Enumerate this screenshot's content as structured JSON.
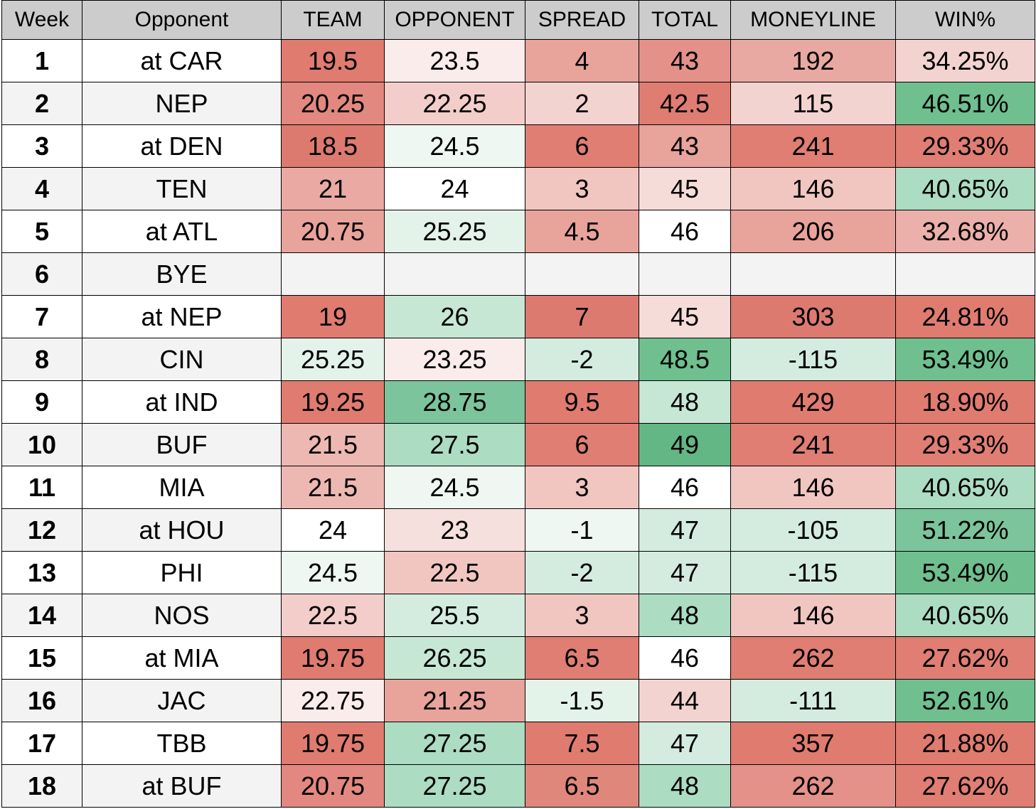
{
  "table": {
    "columns": [
      "Week",
      "Opponent",
      "TEAM",
      "OPPONENT",
      "SPREAD",
      "TOTAL",
      "MONEYLINE",
      "WIN%"
    ],
    "rows": [
      {
        "week": 1,
        "opponent": "at CAR",
        "cells": [
          19.5,
          23.5,
          4,
          43,
          192,
          "34.25%"
        ],
        "colors": [
          "#e07b70",
          "#faeceb",
          "#e8a39b",
          "#e39189",
          "#e8a9a2",
          "#f3d3d0"
        ]
      },
      {
        "week": 2,
        "opponent": "NEP",
        "cells": [
          20.25,
          22.25,
          2,
          42.5,
          115,
          "46.51%"
        ],
        "colors": [
          "#e28880",
          "#f3cdc9",
          "#f3d3d0",
          "#df7d72",
          "#f3d3d0",
          "#6fbf8f"
        ]
      },
      {
        "week": 3,
        "opponent": "at DEN",
        "cells": [
          18.5,
          24.5,
          6,
          43,
          241,
          "29.33%"
        ],
        "colors": [
          "#dd7a6f",
          "#eef7f1",
          "#e07e73",
          "#e8a39b",
          "#e07e73",
          "#e07e73"
        ]
      },
      {
        "week": 4,
        "opponent": "TEN",
        "cells": [
          21,
          24,
          3,
          45,
          146,
          "40.65%"
        ],
        "colors": [
          "#eaaaa3",
          "#ffffff",
          "#f1c6c1",
          "#f6dcd9",
          "#f1c6c1",
          "#acdcc2"
        ]
      },
      {
        "week": 5,
        "opponent": "at ATL",
        "cells": [
          20.75,
          25.25,
          4.5,
          46,
          206,
          "32.68%"
        ],
        "colors": [
          "#e8a39b",
          "#e3f3ea",
          "#e8a39b",
          "#ffffff",
          "#e8a39b",
          "#eab0a9"
        ]
      },
      {
        "week": 6,
        "opponent": "BYE",
        "cells": [
          null,
          null,
          null,
          null,
          null,
          null
        ],
        "colors": [
          "#f3f3f3",
          "#f3f3f3",
          "#f3f3f3",
          "#f3f3f3",
          "#f3f3f3",
          "#f3f3f3"
        ]
      },
      {
        "week": 7,
        "opponent": "at NEP",
        "cells": [
          19,
          26,
          7,
          45,
          303,
          "24.81%"
        ],
        "colors": [
          "#e07b70",
          "#c6e7d4",
          "#dd7a6f",
          "#f6dcd9",
          "#dd7a6f",
          "#e07b70"
        ]
      },
      {
        "week": 8,
        "opponent": "CIN",
        "cells": [
          25.25,
          23.25,
          -2,
          48.5,
          -115,
          "53.49%"
        ],
        "colors": [
          "#e3f3ea",
          "#faeceb",
          "#d3ecdf",
          "#6fbf8f",
          "#d3ecdf",
          "#6fbf8f"
        ]
      },
      {
        "week": 9,
        "opponent": "at IND",
        "cells": [
          19.25,
          28.75,
          9.5,
          48,
          429,
          "18.90%"
        ],
        "colors": [
          "#e07b70",
          "#7cc49c",
          "#e07b70",
          "#c6e7d4",
          "#e07b70",
          "#e07b70"
        ]
      },
      {
        "week": 10,
        "opponent": "BUF",
        "cells": [
          21.5,
          27.5,
          6,
          49,
          241,
          "29.33%"
        ],
        "colors": [
          "#eeb8b2",
          "#acdcc2",
          "#e07e73",
          "#62b785",
          "#e07e73",
          "#e07e73"
        ]
      },
      {
        "week": 11,
        "opponent": "MIA",
        "cells": [
          21.5,
          24.5,
          3,
          46,
          146,
          "40.65%"
        ],
        "colors": [
          "#eeb8b2",
          "#eef7f1",
          "#f1c6c1",
          "#ffffff",
          "#f1c6c1",
          "#acdcc2"
        ]
      },
      {
        "week": 12,
        "opponent": "at HOU",
        "cells": [
          24,
          23,
          -1,
          47,
          -105,
          "51.22%"
        ],
        "colors": [
          "#ffffff",
          "#f6e0de",
          "#eef7f1",
          "#d3ecdf",
          "#d3ecdf",
          "#7cc49c"
        ]
      },
      {
        "week": 13,
        "opponent": "PHI",
        "cells": [
          24.5,
          22.5,
          -2,
          47,
          -115,
          "53.49%"
        ],
        "colors": [
          "#eef7f1",
          "#f1c6c1",
          "#d3ecdf",
          "#d3ecdf",
          "#d3ecdf",
          "#6fbf8f"
        ]
      },
      {
        "week": 14,
        "opponent": "NOS",
        "cells": [
          22.5,
          25.5,
          3,
          48,
          146,
          "40.65%"
        ],
        "colors": [
          "#f3cdc9",
          "#d3ecdf",
          "#f1c6c1",
          "#acdcc2",
          "#f1c6c1",
          "#acdcc2"
        ]
      },
      {
        "week": 15,
        "opponent": "at MIA",
        "cells": [
          19.75,
          26.25,
          6.5,
          46,
          262,
          "27.62%"
        ],
        "colors": [
          "#e07b70",
          "#c6e7d4",
          "#e07e73",
          "#ffffff",
          "#e07e73",
          "#e07e73"
        ]
      },
      {
        "week": 16,
        "opponent": "JAC",
        "cells": [
          22.75,
          21.25,
          -1.5,
          44,
          -111,
          "52.61%"
        ],
        "colors": [
          "#faeceb",
          "#e8a39b",
          "#e3f3ea",
          "#f3d3d0",
          "#d3ecdf",
          "#6fbf8f"
        ]
      },
      {
        "week": 17,
        "opponent": "TBB",
        "cells": [
          19.75,
          27.25,
          7.5,
          47,
          357,
          "21.88%"
        ],
        "colors": [
          "#e07b70",
          "#acdcc2",
          "#e07b70",
          "#d3ecdf",
          "#e07b70",
          "#e07b70"
        ]
      },
      {
        "week": 18,
        "opponent": "at BUF",
        "cells": [
          20.75,
          27.25,
          6.5,
          48,
          262,
          "27.62%"
        ],
        "colors": [
          "#e28880",
          "#acdcc2",
          "#e0877c",
          "#acdcc2",
          "#e39189",
          "#e07e73"
        ]
      }
    ]
  }
}
